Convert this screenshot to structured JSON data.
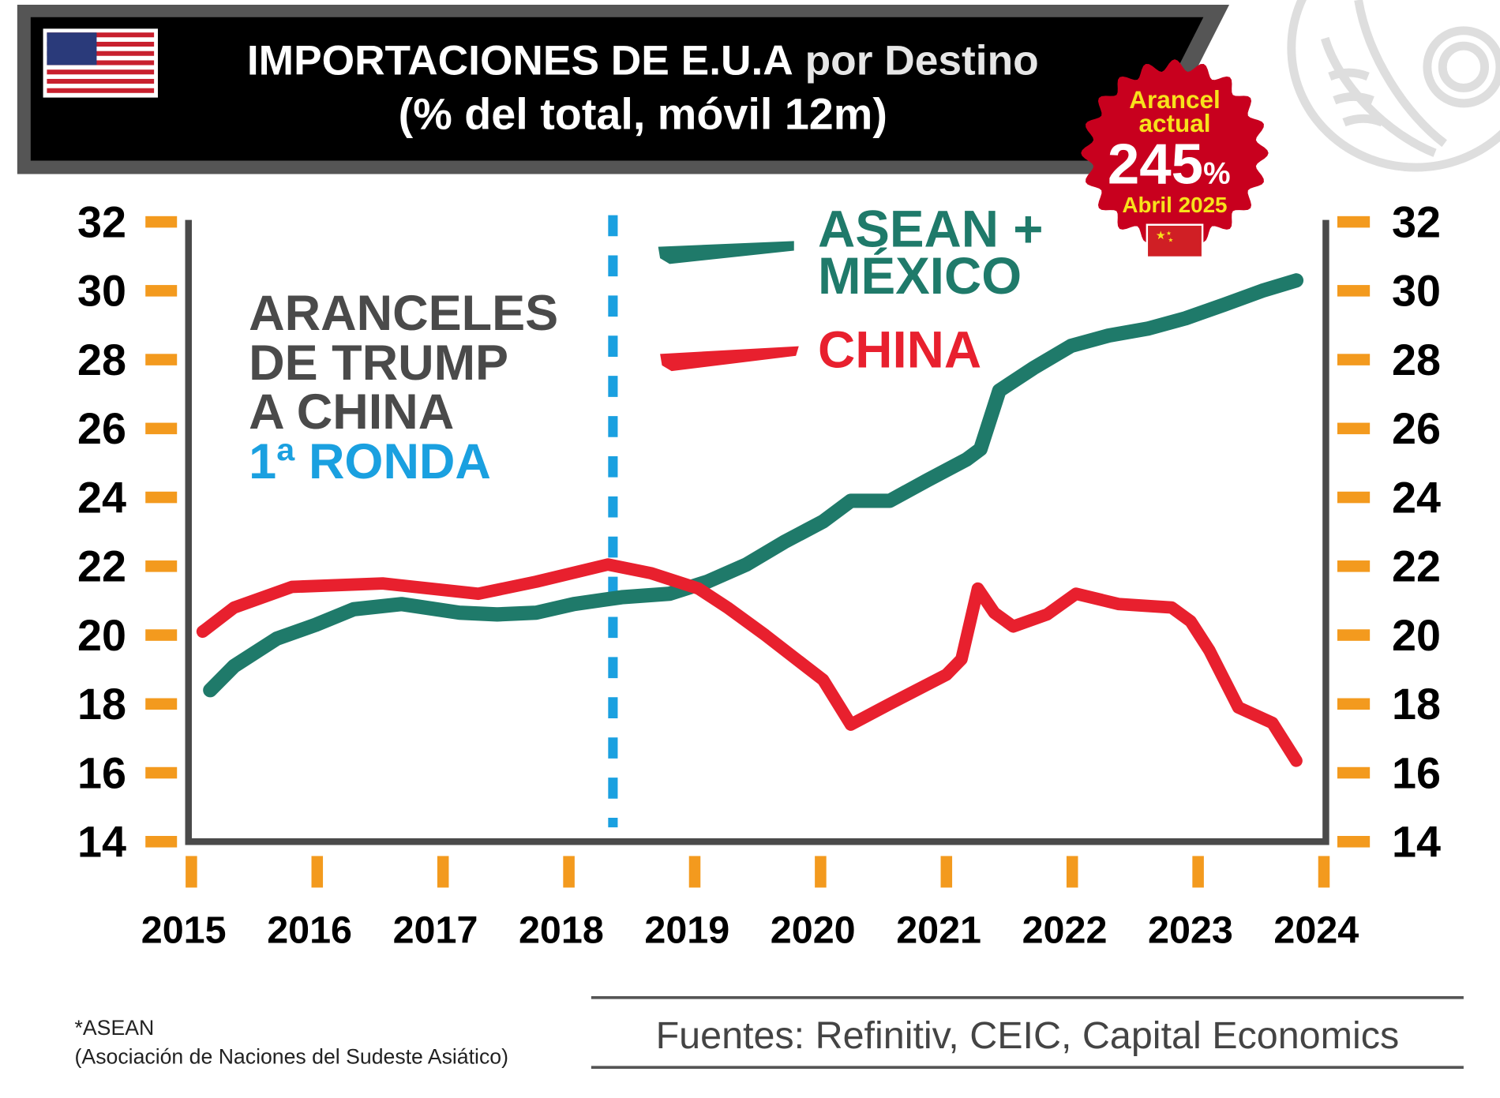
{
  "header": {
    "title_main": "IMPORTACIONES DE E.U.A",
    "title_light": " por Destino",
    "subtitle": "(% del total, móvil 12m)",
    "flag_icon": "us-flag-icon"
  },
  "stamp": {
    "line1": "Arancel",
    "line2": "actual",
    "value": "245",
    "unit": "%",
    "date": "Abril 2025",
    "flag_icon": "china-flag-icon",
    "color": "#c8001e"
  },
  "annotation": {
    "lines": [
      "ARANCELES",
      "DE TRUMP",
      "A CHINA"
    ],
    "round": "1ª RONDA",
    "marker_year": 2018.35,
    "color": "#4a4a4a",
    "round_color": "#1aa0e0"
  },
  "legend": {
    "asean_line1": "ASEAN +",
    "asean_line2": "MÉXICO",
    "china": "CHINA"
  },
  "footer": {
    "note1": "*ASEAN",
    "note2": "(Asociación de Naciones del Sudeste Asiático)",
    "sources": "Fuentes: Refinitiv, CEIC, Capital Economics"
  },
  "chart_data": {
    "type": "line",
    "title": "IMPORTACIONES DE E.U.A por Destino (% del total, móvil 12m)",
    "xlim": [
      2015,
      2024
    ],
    "ylim": [
      14,
      32
    ],
    "x_ticks": [
      2015,
      2016,
      2017,
      2018,
      2019,
      2020,
      2021,
      2022,
      2023,
      2024
    ],
    "y_ticks": [
      14,
      16,
      18,
      20,
      22,
      24,
      26,
      28,
      30,
      32
    ],
    "y_axis_sides": [
      "left",
      "right"
    ],
    "grid": false,
    "legend_position": "top-center",
    "series": [
      {
        "name": "ASEAN + MÉXICO",
        "color": "#1f7a6a",
        "points": [
          [
            2015.15,
            18.4
          ],
          [
            2015.34,
            19.1
          ],
          [
            2015.68,
            19.9
          ],
          [
            2015.99,
            20.3
          ],
          [
            2016.29,
            20.75
          ],
          [
            2016.67,
            20.9
          ],
          [
            2017.13,
            20.65
          ],
          [
            2017.43,
            20.6
          ],
          [
            2017.74,
            20.65
          ],
          [
            2018.04,
            20.9
          ],
          [
            2018.42,
            21.1
          ],
          [
            2018.8,
            21.2
          ],
          [
            2019.1,
            21.55
          ],
          [
            2019.41,
            22.05
          ],
          [
            2019.71,
            22.7
          ],
          [
            2020.02,
            23.3
          ],
          [
            2020.24,
            23.9
          ],
          [
            2020.55,
            23.9
          ],
          [
            2020.85,
            24.5
          ],
          [
            2021.16,
            25.1
          ],
          [
            2021.27,
            25.4
          ],
          [
            2021.42,
            27.1
          ],
          [
            2021.69,
            27.75
          ],
          [
            2021.99,
            28.4
          ],
          [
            2022.29,
            28.7
          ],
          [
            2022.6,
            28.9
          ],
          [
            2022.9,
            29.2
          ],
          [
            2023.21,
            29.6
          ],
          [
            2023.51,
            30.0
          ],
          [
            2023.78,
            30.3
          ]
        ]
      },
      {
        "name": "CHINA",
        "color": "#e8202e",
        "points": [
          [
            2015.09,
            20.1
          ],
          [
            2015.34,
            20.8
          ],
          [
            2015.8,
            21.4
          ],
          [
            2016.52,
            21.5
          ],
          [
            2017.28,
            21.2
          ],
          [
            2017.74,
            21.55
          ],
          [
            2018.31,
            22.05
          ],
          [
            2018.65,
            21.8
          ],
          [
            2019.03,
            21.35
          ],
          [
            2019.26,
            20.8
          ],
          [
            2019.56,
            20.0
          ],
          [
            2019.86,
            19.15
          ],
          [
            2020.02,
            18.7
          ],
          [
            2020.24,
            17.4
          ],
          [
            2020.55,
            18.0
          ],
          [
            2021.0,
            18.85
          ],
          [
            2021.12,
            19.3
          ],
          [
            2021.25,
            21.35
          ],
          [
            2021.38,
            20.65
          ],
          [
            2021.53,
            20.25
          ],
          [
            2021.8,
            20.6
          ],
          [
            2022.03,
            21.2
          ],
          [
            2022.37,
            20.9
          ],
          [
            2022.79,
            20.8
          ],
          [
            2022.94,
            20.4
          ],
          [
            2023.09,
            19.55
          ],
          [
            2023.32,
            17.9
          ],
          [
            2023.59,
            17.45
          ],
          [
            2023.78,
            16.35
          ]
        ]
      }
    ]
  },
  "colors": {
    "tick": "#f39a1e",
    "axis": "#4a4a4a",
    "banner": "#000000",
    "banner_border": "#555555"
  }
}
